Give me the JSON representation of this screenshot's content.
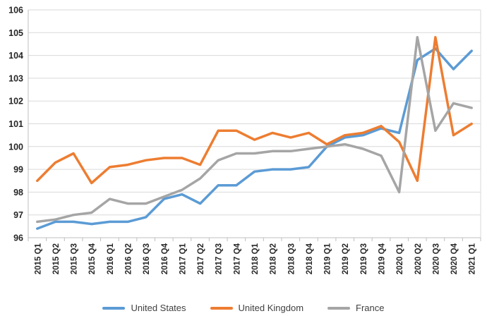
{
  "chart_data": {
    "type": "line",
    "title": "",
    "xlabel": "",
    "ylabel": "",
    "x_categories": [
      "2015 Q1",
      "2015 Q2",
      "2015 Q3",
      "2015 Q4",
      "2016 Q1",
      "2016 Q2",
      "2016 Q3",
      "2016 Q4",
      "2017 Q1",
      "2017 Q2",
      "2017 Q3",
      "2017 Q4",
      "2018 Q1",
      "2018 Q2",
      "2018 Q3",
      "2018 Q4",
      "2019 Q1",
      "2019 Q2",
      "2019 Q3",
      "2019 Q4",
      "2020 Q1",
      "2020 Q2",
      "2020 Q3",
      "2020 Q4",
      "2021 Q1"
    ],
    "series": [
      {
        "name": "United States",
        "color": "#5B9BD5",
        "values": [
          96.4,
          96.7,
          96.7,
          96.6,
          96.7,
          96.7,
          96.9,
          97.7,
          97.9,
          97.5,
          98.3,
          98.3,
          98.9,
          99.0,
          99.0,
          99.1,
          100.0,
          100.4,
          100.5,
          100.8,
          100.6,
          103.8,
          104.3,
          103.4,
          104.2
        ]
      },
      {
        "name": "United Kingdom",
        "color": "#ED7D31",
        "values": [
          98.5,
          99.3,
          99.7,
          98.4,
          99.1,
          99.2,
          99.4,
          99.5,
          99.5,
          99.2,
          100.7,
          100.7,
          100.3,
          100.6,
          100.4,
          100.6,
          100.1,
          100.5,
          100.6,
          100.9,
          100.2,
          98.5,
          104.8,
          100.5,
          101.0
        ]
      },
      {
        "name": "France",
        "color": "#A5A5A5",
        "values": [
          96.7,
          96.8,
          97.0,
          97.1,
          97.7,
          97.5,
          97.5,
          97.8,
          98.1,
          98.6,
          99.4,
          99.7,
          99.7,
          99.8,
          99.8,
          99.9,
          100.0,
          100.1,
          99.9,
          99.6,
          98.0,
          104.8,
          100.7,
          101.9,
          101.7
        ]
      }
    ],
    "y_axis": {
      "min": 96,
      "max": 106,
      "step": 1
    },
    "y_tick_labels": [
      "96",
      "97",
      "98",
      "99",
      "100",
      "101",
      "102",
      "103",
      "104",
      "105",
      "106"
    ],
    "grid": true,
    "legend_position": "bottom"
  },
  "style": {
    "gridline_color": "#D9D9D9",
    "axis_line_color": "#BFBFBF",
    "tick_label_color": "#262626",
    "background": "#FFFFFF"
  }
}
